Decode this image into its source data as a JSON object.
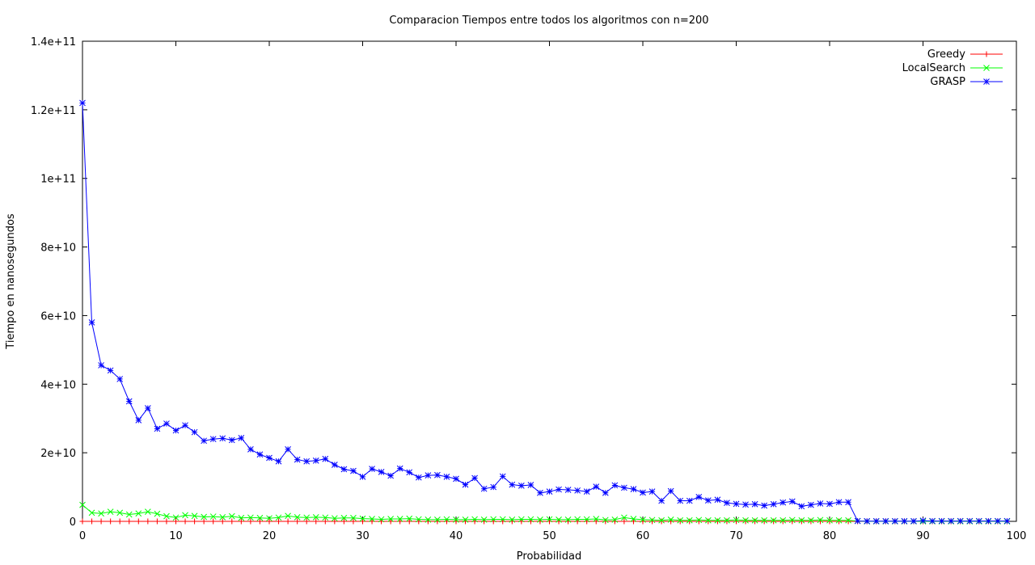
{
  "chart_data": {
    "type": "line",
    "title": "Comparacion Tiempos entre todos los algoritmos con n=200",
    "xlabel": "Probabilidad",
    "ylabel": "Tiempo en nanosegundos",
    "xlim": [
      0,
      100
    ],
    "ylim": [
      0,
      140000000000
    ],
    "xticks": [
      0,
      10,
      20,
      30,
      40,
      50,
      60,
      70,
      80,
      90,
      100
    ],
    "xtick_labels": [
      "0",
      "10",
      "20",
      "30",
      "40",
      "50",
      "60",
      "70",
      "80",
      "90",
      "100"
    ],
    "yticks": [
      0,
      20000000000,
      40000000000,
      60000000000,
      80000000000,
      100000000000,
      120000000000,
      140000000000
    ],
    "ytick_labels": [
      "0",
      "2e+10",
      "4e+10",
      "6e+10",
      "8e+10",
      "1e+11",
      "1.2e+11",
      "1.4e+11"
    ],
    "grid": false,
    "legend_position": "top-right",
    "x": [
      0,
      1,
      2,
      3,
      4,
      5,
      6,
      7,
      8,
      9,
      10,
      11,
      12,
      13,
      14,
      15,
      16,
      17,
      18,
      19,
      20,
      21,
      22,
      23,
      24,
      25,
      26,
      27,
      28,
      29,
      30,
      31,
      32,
      33,
      34,
      35,
      36,
      37,
      38,
      39,
      40,
      41,
      42,
      43,
      44,
      45,
      46,
      47,
      48,
      49,
      50,
      51,
      52,
      53,
      54,
      55,
      56,
      57,
      58,
      59,
      60,
      61,
      62,
      63,
      64,
      65,
      66,
      67,
      68,
      69,
      70,
      71,
      72,
      73,
      74,
      75,
      76,
      77,
      78,
      79,
      80,
      81,
      82,
      83,
      84,
      85,
      86,
      87,
      88,
      89,
      90,
      91,
      92,
      93,
      94,
      95,
      96,
      97,
      98,
      99
    ],
    "series": [
      {
        "name": "Greedy",
        "color": "#ff0000",
        "marker": "plus",
        "values": [
          5000000,
          5000000,
          5000000,
          5000000,
          5000000,
          5000000,
          5000000,
          5000000,
          5000000,
          5000000,
          5000000,
          5000000,
          5000000,
          5000000,
          5000000,
          5000000,
          5000000,
          5000000,
          5000000,
          5000000,
          5000000,
          5000000,
          5000000,
          5000000,
          5000000,
          5000000,
          5000000,
          5000000,
          5000000,
          5000000,
          5000000,
          5000000,
          5000000,
          5000000,
          5000000,
          5000000,
          5000000,
          5000000,
          5000000,
          5000000,
          5000000,
          5000000,
          5000000,
          5000000,
          5000000,
          5000000,
          5000000,
          5000000,
          5000000,
          5000000,
          5000000,
          5000000,
          5000000,
          5000000,
          5000000,
          5000000,
          5000000,
          5000000,
          5000000,
          5000000,
          5000000,
          5000000,
          5000000,
          5000000,
          5000000,
          5000000,
          5000000,
          5000000,
          5000000,
          5000000,
          5000000,
          5000000,
          5000000,
          5000000,
          5000000,
          5000000,
          5000000,
          5000000,
          5000000,
          5000000,
          5000000,
          5000000,
          5000000,
          5000000,
          5000000,
          5000000,
          5000000,
          5000000,
          5000000,
          5000000,
          5000000,
          5000000,
          5000000,
          5000000,
          5000000,
          5000000,
          5000000,
          5000000,
          5000000,
          5000000
        ]
      },
      {
        "name": "LocalSearch",
        "color": "#00ff00",
        "marker": "x",
        "values": [
          4800000000,
          2500000000,
          2300000000,
          2800000000,
          2500000000,
          2000000000,
          2300000000,
          2800000000,
          2200000000,
          1500000000,
          1100000000,
          1800000000,
          1600000000,
          1300000000,
          1400000000,
          1200000000,
          1500000000,
          1000000000,
          1100000000,
          1000000000,
          900000000,
          1100000000,
          1600000000,
          1200000000,
          1100000000,
          1200000000,
          1100000000,
          900000000,
          1000000000,
          1000000000,
          800000000,
          700000000,
          600000000,
          700000000,
          700000000,
          800000000,
          600000000,
          500000000,
          500000000,
          600000000,
          500000000,
          500000000,
          600000000,
          500000000,
          600000000,
          600000000,
          500000000,
          600000000,
          600000000,
          500000000,
          600000000,
          500000000,
          500000000,
          600000000,
          600000000,
          700000000,
          400000000,
          500000000,
          1100000000,
          700000000,
          500000000,
          400000000,
          300000000,
          500000000,
          300000000,
          300000000,
          400000000,
          300000000,
          300000000,
          300000000,
          400000000,
          300000000,
          300000000,
          300000000,
          300000000,
          300000000,
          400000000,
          300000000,
          300000000,
          400000000,
          300000000,
          300000000,
          300000000,
          100000000,
          0,
          0,
          0,
          0,
          0,
          0,
          0,
          0,
          0,
          0,
          0,
          0,
          0,
          0,
          0,
          0
        ]
      },
      {
        "name": "GRASP",
        "color": "#0000ff",
        "marker": "star",
        "values": [
          122000000000,
          58000000000,
          45500000000,
          44000000000,
          41500000000,
          35000000000,
          29500000000,
          33000000000,
          27000000000,
          28500000000,
          26500000000,
          28000000000,
          26000000000,
          23500000000,
          24000000000,
          24200000000,
          23700000000,
          24300000000,
          21000000000,
          19500000000,
          18500000000,
          17500000000,
          21000000000,
          18000000000,
          17500000000,
          17700000000,
          18200000000,
          16500000000,
          15200000000,
          14700000000,
          13000000000,
          15300000000,
          14400000000,
          13300000000,
          15400000000,
          14300000000,
          12800000000,
          13400000000,
          13500000000,
          13000000000,
          12400000000,
          10700000000,
          12600000000,
          9500000000,
          10000000000,
          13100000000,
          10700000000,
          10400000000,
          10600000000,
          8300000000,
          8700000000,
          9300000000,
          9200000000,
          9000000000,
          8700000000,
          10100000000,
          8300000000,
          10500000000,
          9800000000,
          9400000000,
          8400000000,
          8700000000,
          6000000000,
          8800000000,
          6000000000,
          6000000000,
          7100000000,
          6100000000,
          6300000000,
          5400000000,
          5100000000,
          4900000000,
          5000000000,
          4600000000,
          5000000000,
          5500000000,
          5800000000,
          4400000000,
          4800000000,
          5200000000,
          5100000000,
          5600000000,
          5600000000,
          100000000,
          50000000,
          50000000,
          50000000,
          50000000,
          50000000,
          50000000,
          200000000,
          100000000,
          100000000,
          100000000,
          100000000,
          100000000,
          100000000,
          100000000,
          100000000,
          100000000
        ]
      }
    ]
  }
}
